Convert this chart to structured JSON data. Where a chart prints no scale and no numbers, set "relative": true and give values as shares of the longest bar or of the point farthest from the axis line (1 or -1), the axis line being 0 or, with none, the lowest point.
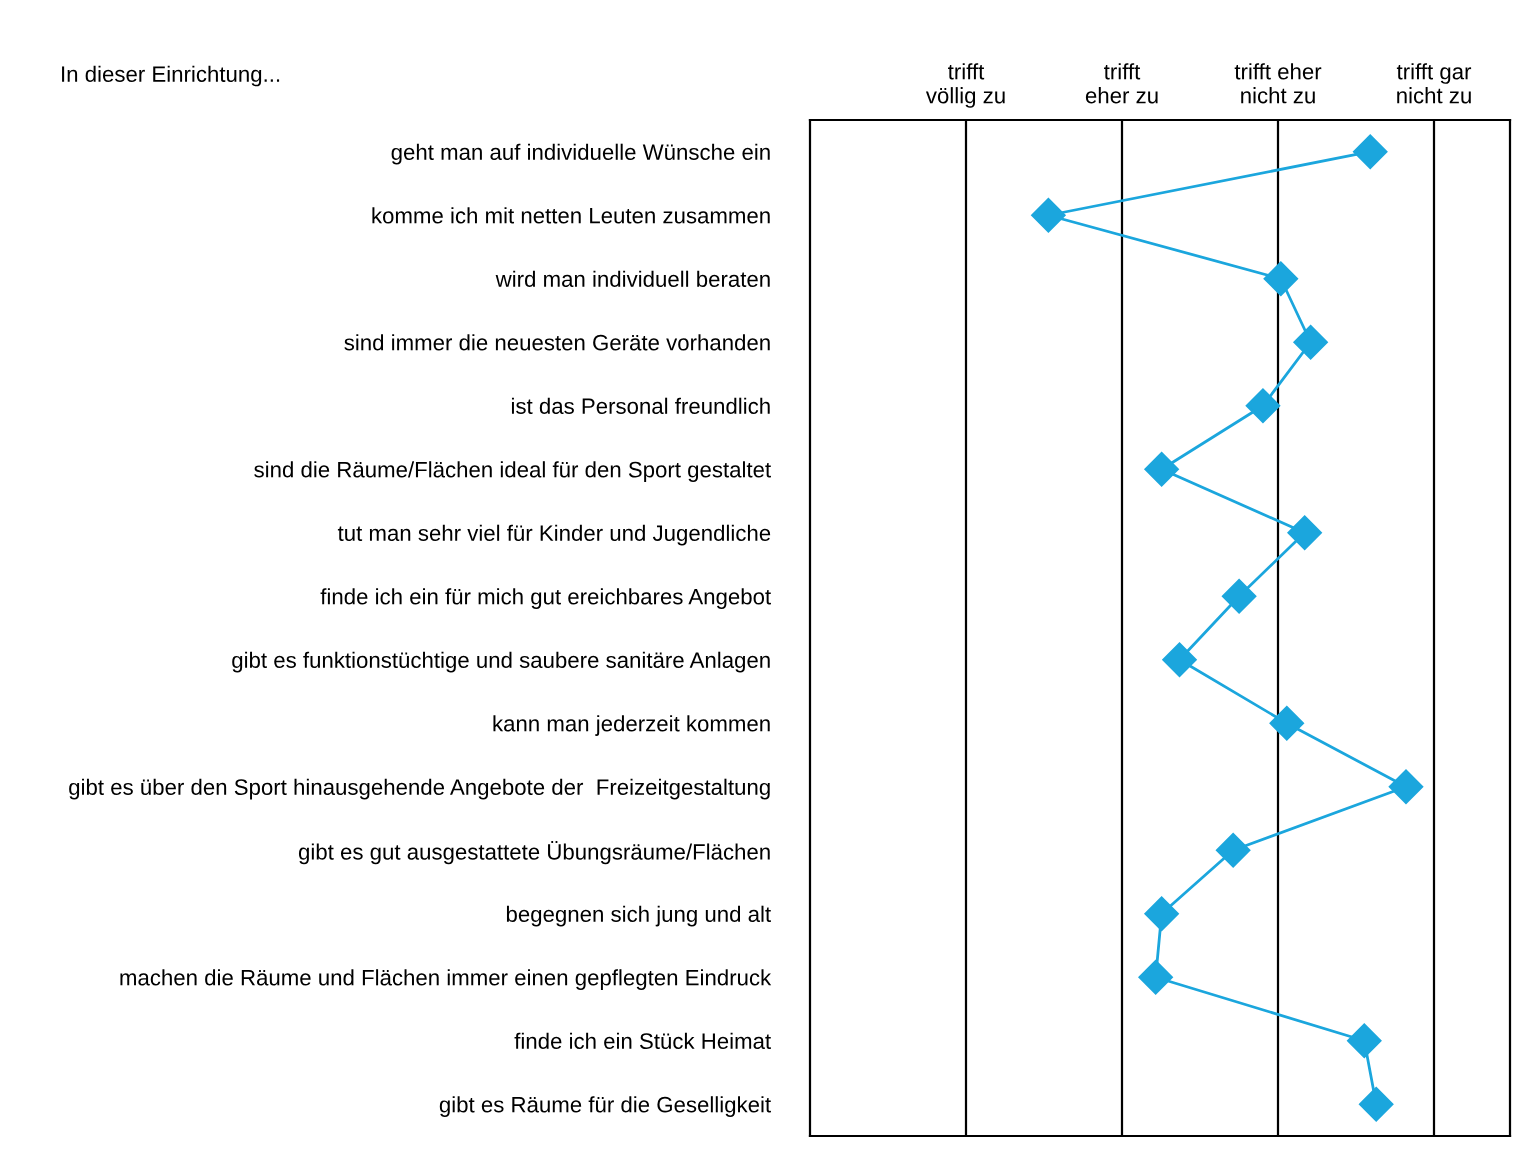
{
  "chart_data": {
    "type": "line",
    "orientation": "horizontal",
    "relative": true,
    "annotations": [
      "In dieser Einrichtung...",
      "trifft\nvöllig zu",
      "trifft\neher zu",
      "trifft eher\nnicht zu",
      "trifft gar\nnicht zu"
    ],
    "categories": [
      "geht man auf individuelle Wünsche ein",
      "komme ich mit netten Leuten zusammen",
      "wird man individuell beraten",
      "sind immer die neuesten Geräte vorhanden",
      "ist das Personal freundlich",
      "sind die Räume/Flächen ideal für den Sport gestaltet",
      "tut man sehr viel für Kinder und Jugendliche",
      "finde ich ein für mich gut ereichbares Angebot",
      "gibt es funktionstüchtige und saubere sanitäre Anlagen",
      "kann man jederzeit kommen",
      "gibt es über den Sport hinausgehende Angebote der  Freizeitgestaltung",
      "gibt es gut ausgestattete Übungsräume/Flächen",
      "begegnen sich jung und alt",
      "machen die Räume und Flächen immer einen gepflegten Eindruck",
      "finde ich ein Stück Heimat",
      "gibt es Räume für die Geselligkeit"
    ],
    "series": [
      {
        "color": "#1ba6dd",
        "values": [
          0.94,
          0.4,
          0.79,
          0.84,
          0.76,
          0.59,
          0.83,
          0.72,
          0.62,
          0.8,
          1,
          0.71,
          0.59,
          0.58,
          0.93,
          0.95
        ]
      }
    ],
    "grid": "x",
    "marker": "diamond",
    "line_style": "solid"
  }
}
